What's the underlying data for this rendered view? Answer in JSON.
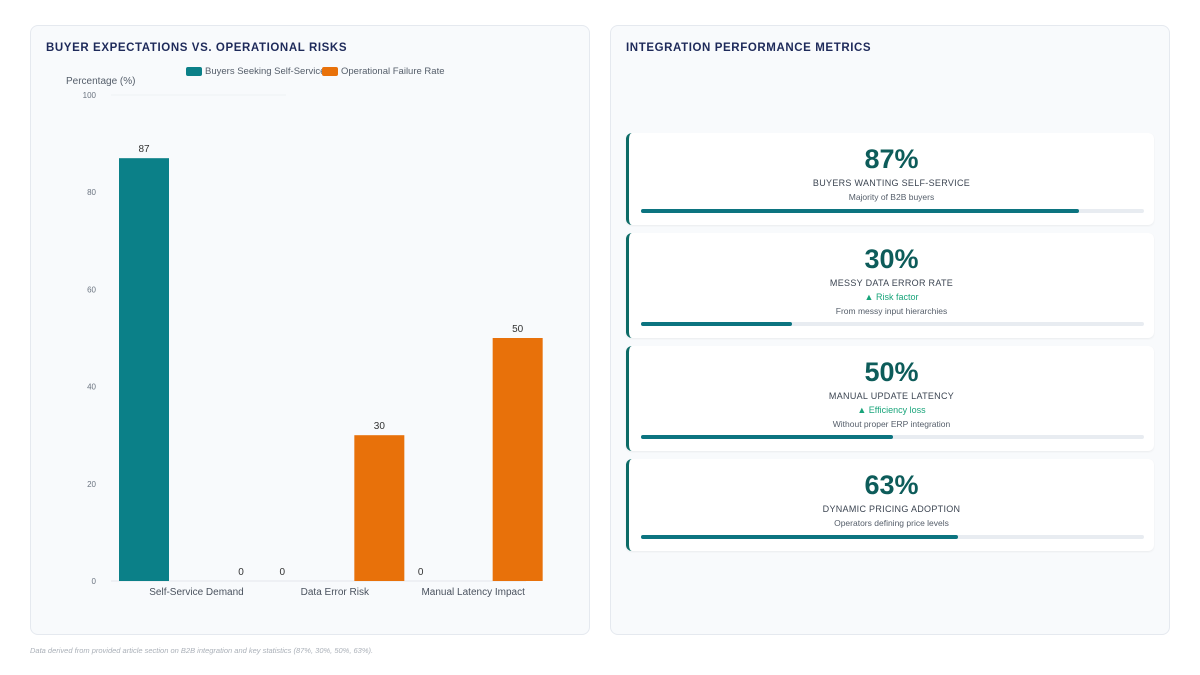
{
  "left": {
    "title": "BUYER EXPECTATIONS VS. OPERATIONAL RISKS"
  },
  "right": {
    "title": "INTEGRATION PERFORMANCE METRICS",
    "cards": [
      {
        "value": "87%",
        "label": "BUYERS WANTING SELF-SERVICE",
        "trend": "",
        "sub": "Majority of B2B buyers",
        "progress": 0.87
      },
      {
        "value": "30%",
        "label": "MESSY DATA ERROR RATE",
        "trend": "▲ Risk factor",
        "sub": "From messy input hierarchies",
        "progress": 0.3
      },
      {
        "value": "50%",
        "label": "MANUAL UPDATE LATENCY",
        "trend": "▲ Efficiency loss",
        "sub": "Without proper ERP integration",
        "progress": 0.5
      },
      {
        "value": "63%",
        "label": "DYNAMIC PRICING ADOPTION",
        "trend": "",
        "sub": "Operators defining price levels",
        "progress": 0.63
      }
    ]
  },
  "footnote": "Data derived from provided article section on B2B integration and key statistics (87%, 30%, 50%, 63%).",
  "colors": {
    "teal": "#0b8088",
    "orange": "#e8710a",
    "accent": "#0c6b66"
  },
  "chart_data": {
    "type": "bar",
    "categories": [
      "Self-Service Demand",
      "Data Error Risk",
      "Manual Latency Impact"
    ],
    "series": [
      {
        "name": "Buyers Seeking Self-Service",
        "values": [
          87,
          0,
          0
        ],
        "color": "#0b8088"
      },
      {
        "name": "Operational Failure Rate",
        "values": [
          0,
          30,
          50
        ],
        "color": "#e8710a"
      }
    ],
    "ylabel": "Percentage (%)",
    "ylim": [
      0,
      100
    ],
    "yticks": [
      0,
      20,
      40,
      60,
      80,
      100
    ],
    "legend": "top"
  }
}
